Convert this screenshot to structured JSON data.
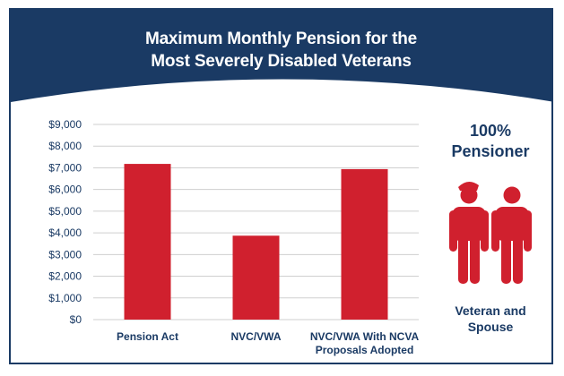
{
  "header": {
    "title_line1": "Maximum Monthly Pension for the",
    "title_line2": "Most Severely Disabled Veterans"
  },
  "side_panel": {
    "title_line1": "100%",
    "title_line2": "Pensioner",
    "caption_line1": "Veteran and",
    "caption_line2": "Spouse",
    "icon": "veteran-and-spouse-icon"
  },
  "colors": {
    "navy": "#1a3a64",
    "bar": "#d0202e",
    "grid": "#cfcfcf"
  },
  "chart_data": {
    "type": "bar",
    "categories": [
      [
        "Pension Act"
      ],
      [
        "NVC/VWA"
      ],
      [
        "NVC/VWA With NCVA",
        "Proposals Adopted"
      ]
    ],
    "values": [
      7180,
      3870,
      6940
    ],
    "title": "Maximum Monthly Pension for the Most Severely Disabled Veterans",
    "xlabel": "",
    "ylabel": "",
    "ylim": [
      0,
      9000
    ],
    "yticks": [
      0,
      1000,
      2000,
      3000,
      4000,
      5000,
      6000,
      7000,
      8000,
      9000
    ],
    "ytick_labels": [
      "$0",
      "$1,000",
      "$2,000",
      "$3,000",
      "$4,000",
      "$5,000",
      "$6,000",
      "$7,000",
      "$8,000",
      "$9,000"
    ],
    "grid": true,
    "legend": "none"
  }
}
